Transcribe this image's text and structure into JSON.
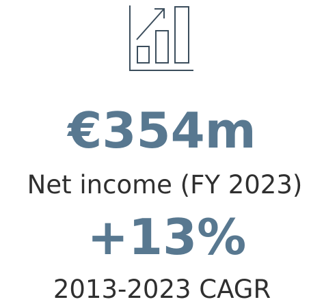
{
  "headline": {
    "value": "€354m",
    "label": "Net income (FY 2023)"
  },
  "growth": {
    "value": "+13%",
    "label": "2013-2023 CAGR"
  }
}
